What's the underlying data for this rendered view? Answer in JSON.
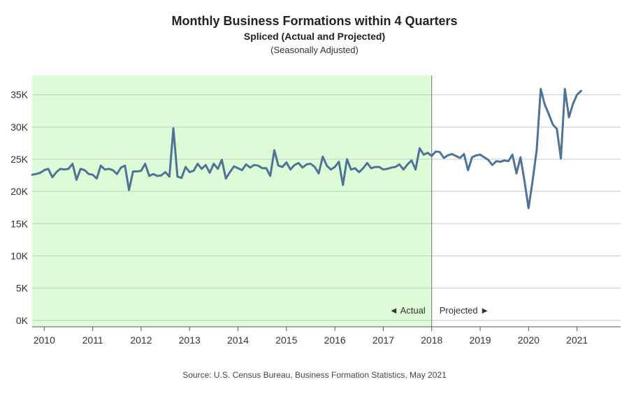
{
  "chart_data": {
    "type": "line",
    "title": "Monthly Business Formations within 4 Quarters",
    "subtitle": "Spliced (Actual and Projected)",
    "subsubtitle": "(Seasonally Adjusted)",
    "source": "Source: U.S. Census Bureau, Business Formation Statistics, May 2021",
    "xlabel": "",
    "ylabel": "",
    "xlim": [
      2009.75,
      2021.9
    ],
    "ylim": [
      -1000,
      38000
    ],
    "y_ticks": [
      0,
      5000,
      10000,
      15000,
      20000,
      25000,
      30000,
      35000
    ],
    "y_tick_labels": [
      "0K",
      "5K",
      "10K",
      "15K",
      "20K",
      "25K",
      "30K",
      "35K"
    ],
    "x_ticks": [
      2010,
      2011,
      2012,
      2013,
      2014,
      2015,
      2016,
      2017,
      2018,
      2019,
      2020,
      2021
    ],
    "x_tick_labels": [
      "2010",
      "2011",
      "2012",
      "2013",
      "2014",
      "2015",
      "2016",
      "2017",
      "2018",
      "2019",
      "2020",
      "2021"
    ],
    "grid": true,
    "split_x": 2018,
    "regions": [
      {
        "name": "actual",
        "label": "◄ Actual",
        "from": 2009.75,
        "to": 2018,
        "color": "#dcfbd6"
      },
      {
        "name": "projected",
        "label": "Projected ►",
        "from": 2018,
        "to": 2021.9,
        "color": "#ffffff"
      }
    ],
    "series": [
      {
        "name": "Business Formations",
        "color": "#4e7397",
        "x_start": 2009.75,
        "step": 0.0833333,
        "values": [
          22600,
          22700,
          22900,
          23300,
          23500,
          22200,
          23000,
          23500,
          23400,
          23500,
          24300,
          21800,
          23500,
          23300,
          22700,
          22600,
          22000,
          24000,
          23400,
          23500,
          23300,
          22700,
          23700,
          24000,
          20200,
          23100,
          23100,
          23200,
          24300,
          22400,
          22700,
          22400,
          22500,
          23000,
          22300,
          29800,
          22300,
          22100,
          23800,
          23000,
          23200,
          24300,
          23500,
          24100,
          22900,
          24300,
          23500,
          24900,
          22000,
          23000,
          23900,
          23600,
          23300,
          24200,
          23700,
          24100,
          24000,
          23600,
          23600,
          22400,
          26400,
          24000,
          23800,
          24500,
          23400,
          24100,
          24400,
          23700,
          24200,
          24300,
          23800,
          22800,
          25400,
          24000,
          23400,
          23800,
          24600,
          21000,
          25000,
          23400,
          23600,
          23000,
          23600,
          24400,
          23600,
          23800,
          23800,
          23400,
          23500,
          23700,
          23800,
          24200,
          23400,
          24200,
          24800,
          23400,
          26700,
          25700,
          26000,
          25500,
          26200,
          26100,
          25200,
          25600,
          25800,
          25500,
          25200,
          25800,
          23300,
          25300,
          25600,
          25700,
          25300,
          24900,
          24100,
          24700,
          24600,
          24800,
          24700,
          25700,
          22800,
          25300,
          21500,
          17400,
          21700,
          26400,
          35900,
          33500,
          32000,
          30400,
          29700,
          25100,
          35900,
          31500,
          33600,
          35000,
          35600
        ]
      }
    ]
  }
}
